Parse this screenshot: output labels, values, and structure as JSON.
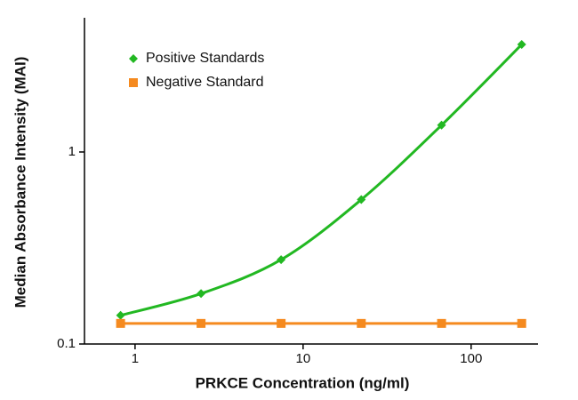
{
  "chart_data": {
    "type": "line",
    "x_label": "PRKCE Concentration (ng/ml)",
    "y_label": "Median Absorbance Intensity (MAI)",
    "x": [
      0.82,
      2.47,
      7.4,
      22.2,
      66.7,
      200
    ],
    "series": [
      {
        "name": "Positive Standards",
        "color": "#22b822",
        "marker": "diamond",
        "values": [
          0.141,
          0.183,
          0.275,
          0.565,
          1.38,
          3.63
        ]
      },
      {
        "name": "Negative Standard",
        "color": "#f58a1f",
        "marker": "square",
        "values": [
          0.128,
          0.128,
          0.128,
          0.128,
          0.128,
          0.128
        ]
      }
    ],
    "xlim": [
      0.5,
      250
    ],
    "ylim": [
      0.1,
      5
    ],
    "xticks": [
      1,
      10,
      100
    ],
    "yticks": [
      0.1,
      1
    ],
    "x_log": true,
    "y_log": true,
    "legend": "upper-left"
  }
}
